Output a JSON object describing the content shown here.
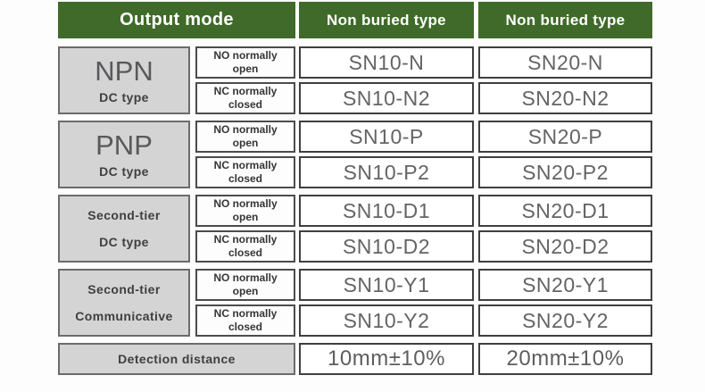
{
  "colors": {
    "header_bg": "#3f6a29",
    "header_text": "#ffffff",
    "label_bg": "#d4d4d4",
    "label_border": "#6b6b6b",
    "cell_border": "#3f3f3f",
    "model_text": "#646464"
  },
  "header": {
    "output_mode": "Output mode",
    "col3": "Non buried type",
    "col4": "Non buried type"
  },
  "groups": [
    {
      "title": "NPN",
      "subtitle": "DC type",
      "rows": [
        {
          "mode": "NO normally open",
          "models": [
            "SN10-N",
            "SN20-N"
          ]
        },
        {
          "mode": "NC normally closed",
          "models": [
            "SN10-N2",
            "SN20-N2"
          ]
        }
      ]
    },
    {
      "title": "PNP",
      "subtitle": "DC type",
      "rows": [
        {
          "mode": "NO normally open",
          "models": [
            "SN10-P",
            "SN20-P"
          ]
        },
        {
          "mode": "NC normally closed",
          "models": [
            "SN10-P2",
            "SN20-P2"
          ]
        }
      ]
    },
    {
      "title": "Second-tier",
      "subtitle": "DC type",
      "rows": [
        {
          "mode": "NO normally open",
          "models": [
            "SN10-D1",
            "SN20-D1"
          ]
        },
        {
          "mode": "NC normally closed",
          "models": [
            "SN10-D2",
            "SN20-D2"
          ]
        }
      ]
    },
    {
      "title": "Second-tier",
      "subtitle": "Communicative",
      "rows": [
        {
          "mode": "NO normally open",
          "models": [
            "SN10-Y1",
            "SN20-Y1"
          ]
        },
        {
          "mode": "NC normally closed",
          "models": [
            "SN10-Y2",
            "SN20-Y2"
          ]
        }
      ]
    }
  ],
  "footer": {
    "label": "Detection distance",
    "values": [
      "10mm±10%",
      "20mm±10%"
    ]
  }
}
